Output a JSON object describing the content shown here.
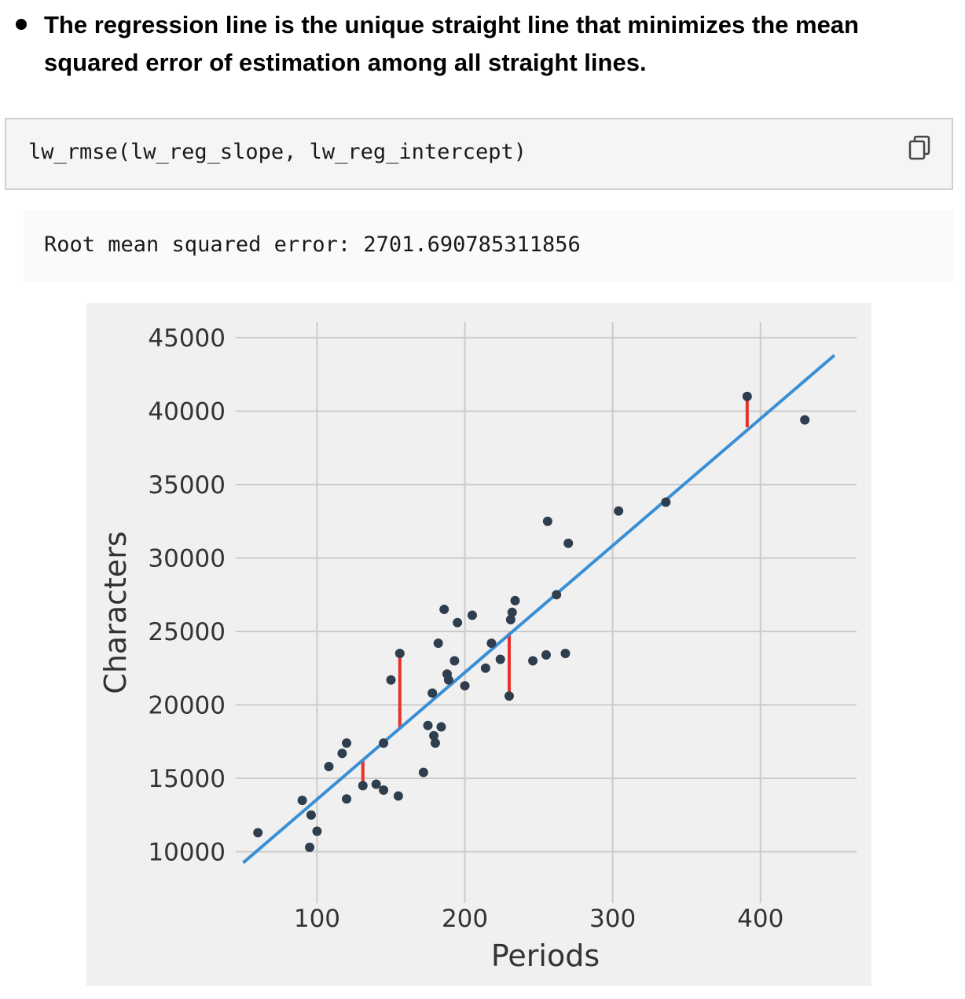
{
  "bullet": {
    "text": "The regression line is the unique straight line that minimizes the mean squared error of estimation among all straight lines."
  },
  "code_cell": {
    "code": "lw_rmse(lw_reg_slope, lw_reg_intercept)",
    "copy_icon": "copy-icon"
  },
  "output_cell": {
    "text": "Root mean squared error: 2701.690785311856"
  },
  "colors": {
    "plot_background": "#f0f0f0",
    "grid": "#cbcbcb",
    "points": "#2f3e4e",
    "regression_line": "#3a8fd4",
    "error_lines": "#e8302a"
  },
  "chart_data": {
    "type": "scatter",
    "xlabel": "Periods",
    "ylabel": "Characters",
    "xlim": [
      45,
      465
    ],
    "ylim": [
      6500,
      46600
    ],
    "xticks": [
      100,
      200,
      300,
      400
    ],
    "yticks": [
      10000,
      15000,
      20000,
      25000,
      30000,
      35000,
      40000,
      45000
    ],
    "grid": true,
    "points": [
      [
        60,
        11300
      ],
      [
        90,
        13500
      ],
      [
        95,
        10300
      ],
      [
        96,
        12500
      ],
      [
        100,
        11400
      ],
      [
        108,
        15800
      ],
      [
        117,
        16700
      ],
      [
        120,
        17400
      ],
      [
        120,
        13600
      ],
      [
        131,
        14500
      ],
      [
        140,
        14600
      ],
      [
        145,
        17400
      ],
      [
        145,
        14200
      ],
      [
        150,
        21700
      ],
      [
        155,
        13800
      ],
      [
        156,
        23500
      ],
      [
        172,
        15400
      ],
      [
        175,
        18600
      ],
      [
        178,
        20800
      ],
      [
        179,
        17900
      ],
      [
        180,
        17400
      ],
      [
        182,
        24200
      ],
      [
        184,
        18500
      ],
      [
        186,
        26500
      ],
      [
        188,
        22100
      ],
      [
        189,
        21700
      ],
      [
        193,
        23000
      ],
      [
        195,
        25600
      ],
      [
        200,
        21300
      ],
      [
        205,
        26100
      ],
      [
        214,
        22500
      ],
      [
        218,
        24200
      ],
      [
        224,
        23100
      ],
      [
        230,
        20600
      ],
      [
        231,
        25800
      ],
      [
        232,
        26300
      ],
      [
        234,
        27100
      ],
      [
        246,
        23000
      ],
      [
        255,
        23400
      ],
      [
        256,
        32500
      ],
      [
        262,
        27500
      ],
      [
        268,
        23500
      ],
      [
        270,
        31000
      ],
      [
        304,
        33200
      ],
      [
        336,
        33800
      ],
      [
        391,
        41000
      ],
      [
        430,
        39400
      ]
    ],
    "regression_line": {
      "x": [
        50,
        450
      ],
      "y": [
        9250,
        43800
      ]
    },
    "error_segments": [
      {
        "x": 131,
        "y_point": 14500,
        "y_line": 16200
      },
      {
        "x": 156,
        "y_point": 23500,
        "y_line": 18400
      },
      {
        "x": 230,
        "y_point": 20600,
        "y_line": 24900
      },
      {
        "x": 391,
        "y_point": 41000,
        "y_line": 38900
      }
    ]
  }
}
